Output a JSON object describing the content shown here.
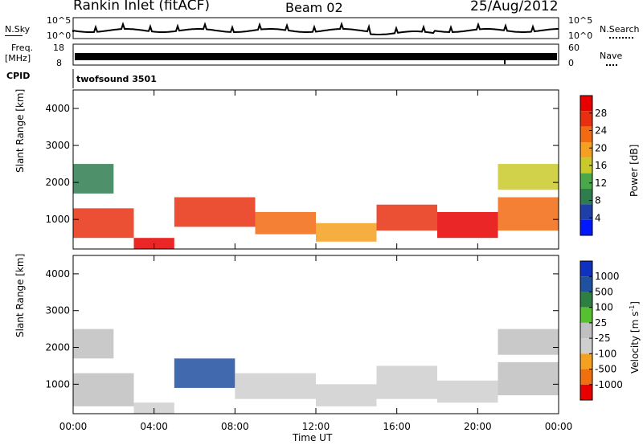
{
  "header": {
    "station": "Rankin Inlet (fitACF)",
    "beam": "Beam 02",
    "date": "25/Aug/2012"
  },
  "noise_panel": {
    "left_label": "N.Sky",
    "right_label": "N.Search",
    "left_ticks": [
      "10^5",
      "10^0"
    ],
    "right_ticks": [
      "10^5",
      "10^0"
    ]
  },
  "freq_panel": {
    "left_label_1": "Freq.",
    "left_label_2": "[MHz]",
    "left_ticks": [
      "18",
      "8"
    ],
    "right_ticks": [
      "60",
      "0"
    ],
    "right_label": "Nave"
  },
  "cpid_panel": {
    "left_label": "CPID",
    "program": "twofsound 3501"
  },
  "colors": {
    "power_scale": [
      "#0018ff",
      "#1f3fa8",
      "#2e7d4f",
      "#49a84a",
      "#c9c92a",
      "#f5a020",
      "#f26a12",
      "#e83010",
      "#e80000"
    ],
    "velocity_scale": [
      "#e80000",
      "#f07010",
      "#f5a020",
      "#cfcfcf",
      "#c0c0c0",
      "#55c030",
      "#2e8040",
      "#2050a0",
      "#1030c0"
    ]
  },
  "chart_data": [
    {
      "type": "heatmap",
      "title": "",
      "xlabel": "",
      "ylabel": "Slant Range [km]",
      "x_ticks": [
        "00:00",
        "04:00",
        "08:00",
        "12:00",
        "16:00",
        "20:00",
        "00:00"
      ],
      "y_ticks": [
        "1000",
        "2000",
        "3000",
        "4000"
      ],
      "ylim": [
        200,
        4500
      ],
      "colorbar": {
        "label": "Power [dB]",
        "ticks": [
          "28",
          "24",
          "20",
          "16",
          "12",
          "8",
          "4"
        ],
        "range": [
          0,
          30
        ]
      },
      "echo_regions": [
        {
          "t_start": 0.0,
          "t_end": 3.0,
          "r_low": 500,
          "r_high": 1300,
          "value": 26
        },
        {
          "t_start": 3.0,
          "t_end": 5.0,
          "r_low": 200,
          "r_high": 500,
          "value": 29
        },
        {
          "t_start": 5.0,
          "t_end": 9.0,
          "r_low": 800,
          "r_high": 1600,
          "value": 25
        },
        {
          "t_start": 9.0,
          "t_end": 12.0,
          "r_low": 600,
          "r_high": 1200,
          "value": 22
        },
        {
          "t_start": 12.0,
          "t_end": 15.0,
          "r_low": 400,
          "r_high": 900,
          "value": 18
        },
        {
          "t_start": 15.0,
          "t_end": 18.0,
          "r_low": 700,
          "r_high": 1400,
          "value": 24
        },
        {
          "t_start": 18.0,
          "t_end": 21.0,
          "r_low": 500,
          "r_high": 1200,
          "value": 27
        },
        {
          "t_start": 21.0,
          "t_end": 24.0,
          "r_low": 700,
          "r_high": 1600,
          "value": 23
        },
        {
          "t_start": 0.0,
          "t_end": 2.0,
          "r_low": 1700,
          "r_high": 2500,
          "value": 9
        },
        {
          "t_start": 21.0,
          "t_end": 24.0,
          "r_low": 1800,
          "r_high": 2500,
          "value": 14
        }
      ]
    },
    {
      "type": "heatmap",
      "title": "",
      "xlabel": "Time UT",
      "ylabel": "Slant Range [km]",
      "x_ticks": [
        "00:00",
        "04:00",
        "08:00",
        "12:00",
        "16:00",
        "20:00",
        "00:00"
      ],
      "y_ticks": [
        "1000",
        "2000",
        "3000",
        "4000"
      ],
      "ylim": [
        200,
        4500
      ],
      "colorbar": {
        "label": "Velocity [m s^-1]",
        "ticks": [
          "1000",
          "500",
          "100",
          "25",
          "-25",
          "-100",
          "-500",
          "-1000"
        ],
        "range": [
          -1000,
          1000
        ]
      },
      "echo_regions": [
        {
          "t_start": 0.0,
          "t_end": 3.0,
          "r_low": 400,
          "r_high": 1300,
          "value": -100
        },
        {
          "t_start": 3.0,
          "t_end": 5.0,
          "r_low": 200,
          "r_high": 500,
          "value": -300
        },
        {
          "t_start": 5.0,
          "t_end": 8.0,
          "r_low": 900,
          "r_high": 1700,
          "value": 600
        },
        {
          "t_start": 8.0,
          "t_end": 12.0,
          "r_low": 600,
          "r_high": 1300,
          "value": -120
        },
        {
          "t_start": 12.0,
          "t_end": 15.0,
          "r_low": 400,
          "r_high": 1000,
          "value": -150
        },
        {
          "t_start": 15.0,
          "t_end": 18.0,
          "r_low": 600,
          "r_high": 1500,
          "value": -300
        },
        {
          "t_start": 18.0,
          "t_end": 21.0,
          "r_low": 500,
          "r_high": 1100,
          "value": -250
        },
        {
          "t_start": 21.0,
          "t_end": 24.0,
          "r_low": 700,
          "r_high": 1600,
          "value": -100
        },
        {
          "t_start": 0.0,
          "t_end": 2.0,
          "r_low": 1700,
          "r_high": 2500,
          "value": 10
        },
        {
          "t_start": 21.0,
          "t_end": 24.0,
          "r_low": 1800,
          "r_high": 2500,
          "value": 5
        }
      ]
    }
  ]
}
